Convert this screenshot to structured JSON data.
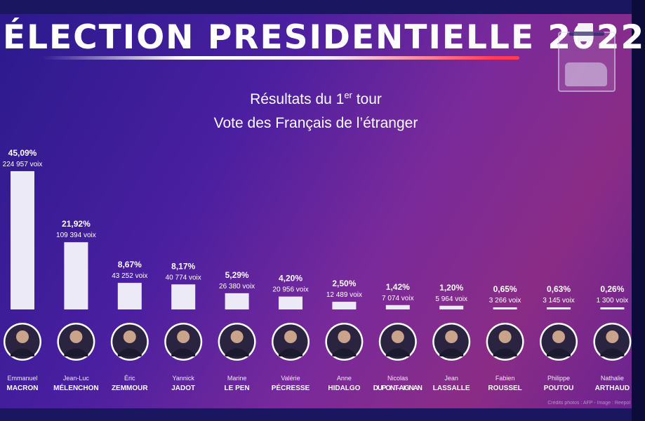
{
  "title": "ÉLECTION PRESIDENTIELLE 2022",
  "subtitle_line1_main": "Résultats du 1",
  "subtitle_line1_sup": "er",
  "subtitle_line1_end": " tour",
  "subtitle_line2": "Vote des Français de l’étranger",
  "credit": "Crédits photos : AFP - Image : Reepol",
  "colors": {
    "bar": "#eceaf6",
    "avatar_ring": "#ffffff",
    "underline_end": "#ff3b55"
  },
  "icons": [
    "ballot-box-icon"
  ],
  "chart_data": {
    "type": "bar",
    "candidates": [
      {
        "first": "Emmanuel",
        "last": "MACRON",
        "percent_label": "45,09%",
        "votes_label": "224 957 voix",
        "value": 45.09
      },
      {
        "first": "Jean-Luc",
        "last": "MÉLENCHON",
        "percent_label": "21,92%",
        "votes_label": "109 394 voix",
        "value": 21.92
      },
      {
        "first": "Éric",
        "last": "ZEMMOUR",
        "percent_label": "8,67%",
        "votes_label": "43 252 voix",
        "value": 8.67
      },
      {
        "first": "Yannick",
        "last": "JADOT",
        "percent_label": "8,17%",
        "votes_label": "40 774 voix",
        "value": 8.17
      },
      {
        "first": "Marine",
        "last": "LE PEN",
        "percent_label": "5,29%",
        "votes_label": "26 380 voix",
        "value": 5.29
      },
      {
        "first": "Valérie",
        "last": "PÉCRESSE",
        "percent_label": "4,20%",
        "votes_label": "20 956 voix",
        "value": 4.2
      },
      {
        "first": "Anne",
        "last": "HIDALGO",
        "percent_label": "2,50%",
        "votes_label": "12 489 voix",
        "value": 2.5
      },
      {
        "first": "Nicolas",
        "last": "DUPONT-AIGNAN",
        "percent_label": "1,42%",
        "votes_label": "7 074 voix",
        "value": 1.42
      },
      {
        "first": "Jean",
        "last": "LASSALLE",
        "percent_label": "1,20%",
        "votes_label": "5 964 voix",
        "value": 1.2
      },
      {
        "first": "Fabien",
        "last": "ROUSSEL",
        "percent_label": "0,65%",
        "votes_label": "3 266 voix",
        "value": 0.65
      },
      {
        "first": "Philippe",
        "last": "POUTOU",
        "percent_label": "0,63%",
        "votes_label": "3 145 voix",
        "value": 0.63
      },
      {
        "first": "Nathalie",
        "last": "ARTHAUD",
        "percent_label": "0,26%",
        "votes_label": "1 300 voix",
        "value": 0.26
      }
    ]
  }
}
